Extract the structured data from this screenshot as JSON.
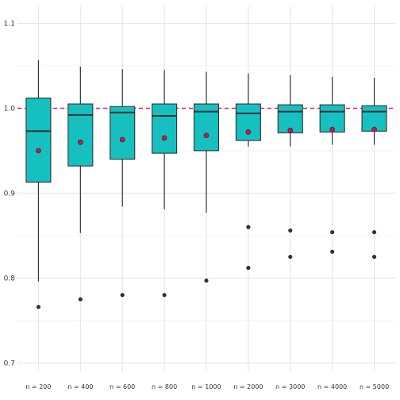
{
  "chart_data": {
    "type": "boxplot",
    "title": "",
    "xlabel": "",
    "ylabel": "",
    "ylim": [
      0.69,
      1.12
    ],
    "y_ticks": [
      0.7,
      0.8,
      0.9,
      1.0,
      1.1
    ],
    "y_tick_labels": [
      "0.7",
      "0.8",
      "0.9",
      "1.0",
      "1.1"
    ],
    "reference_line": {
      "y": 1.0,
      "color": "#e8185b",
      "style": "dashed"
    },
    "box_fill": "#17c0c0",
    "mean_color": "#c2185b",
    "grid": true,
    "categories": [
      "n = 200",
      "n = 400",
      "n = 600",
      "n = 800",
      "n = 1000",
      "n = 2000",
      "n = 3000",
      "n = 4000",
      "n = 5000"
    ],
    "boxes": [
      {
        "whisker_low": 0.796,
        "q1": 0.913,
        "median": 0.973,
        "q3": 1.012,
        "whisker_high": 1.057,
        "mean": 0.95,
        "outliers": [
          0.766
        ]
      },
      {
        "whisker_low": 0.853,
        "q1": 0.932,
        "median": 0.992,
        "q3": 1.005,
        "whisker_high": 1.049,
        "mean": 0.96,
        "outliers": [
          0.775
        ]
      },
      {
        "whisker_low": 0.884,
        "q1": 0.94,
        "median": 0.995,
        "q3": 1.002,
        "whisker_high": 1.046,
        "mean": 0.963,
        "outliers": [
          0.78
        ]
      },
      {
        "whisker_low": 0.881,
        "q1": 0.947,
        "median": 0.991,
        "q3": 1.005,
        "whisker_high": 1.045,
        "mean": 0.965,
        "outliers": [
          0.78
        ]
      },
      {
        "whisker_low": 0.877,
        "q1": 0.95,
        "median": 0.996,
        "q3": 1.005,
        "whisker_high": 1.043,
        "mean": 0.968,
        "outliers": [
          0.797
        ]
      },
      {
        "whisker_low": 0.955,
        "q1": 0.962,
        "median": 0.994,
        "q3": 1.005,
        "whisker_high": 1.041,
        "mean": 0.972,
        "outliers": [
          0.86,
          0.812
        ]
      },
      {
        "whisker_low": 0.955,
        "q1": 0.971,
        "median": 0.996,
        "q3": 1.004,
        "whisker_high": 1.039,
        "mean": 0.974,
        "outliers": [
          0.856,
          0.825
        ]
      },
      {
        "whisker_low": 0.957,
        "q1": 0.972,
        "median": 0.996,
        "q3": 1.004,
        "whisker_high": 1.037,
        "mean": 0.975,
        "outliers": [
          0.854,
          0.831
        ]
      },
      {
        "whisker_low": 0.957,
        "q1": 0.973,
        "median": 0.996,
        "q3": 1.003,
        "whisker_high": 1.036,
        "mean": 0.975,
        "outliers": [
          0.854,
          0.825
        ]
      }
    ]
  }
}
